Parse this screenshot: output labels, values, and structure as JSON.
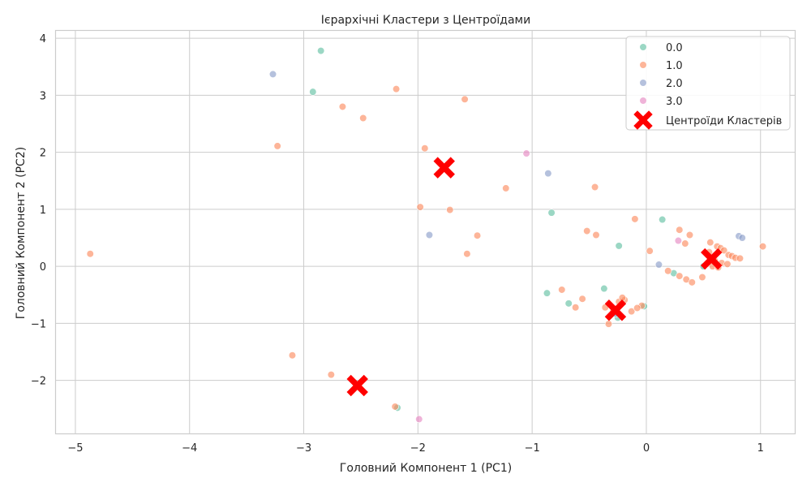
{
  "chart_data": {
    "type": "scatter",
    "title": "Ієрархічні Кластери з Центроїдами",
    "xlabel": "Головний Компонент 1 (PC1)",
    "ylabel": "Головний Компонент 2 (PC2)",
    "xlim": [
      -5.17,
      1.3
    ],
    "ylim": [
      -2.93,
      4.13
    ],
    "xticks": [
      -5,
      -4,
      -3,
      -2,
      -1,
      0,
      1
    ],
    "yticks": [
      -2,
      -1,
      0,
      1,
      2,
      3,
      4
    ],
    "xtick_labels": [
      "−5",
      "−4",
      "−3",
      "−2",
      "−1",
      "0",
      "1"
    ],
    "ytick_labels": [
      "−2",
      "−1",
      "0",
      "1",
      "2",
      "3",
      "4"
    ],
    "grid": true,
    "legend_position": "top-right",
    "series": [
      {
        "name": "0.0",
        "color": "#66c2a5",
        "points": [
          [
            -2.85,
            3.78
          ],
          [
            -2.92,
            3.06
          ],
          [
            -0.83,
            0.94
          ],
          [
            0.14,
            0.82
          ],
          [
            -0.24,
            0.36
          ],
          [
            -0.87,
            -0.47
          ],
          [
            -0.68,
            -0.65
          ],
          [
            -0.37,
            -0.39
          ],
          [
            0.24,
            -0.12
          ],
          [
            -2.18,
            -2.48
          ],
          [
            -0.25,
            -0.9
          ],
          [
            0.5,
            0.0
          ],
          [
            -0.02,
            -0.7
          ]
        ]
      },
      {
        "name": "1.0",
        "color": "#fc8d62",
        "points": [
          [
            -4.87,
            0.22
          ],
          [
            -3.23,
            2.11
          ],
          [
            -2.66,
            2.8
          ],
          [
            -2.48,
            2.6
          ],
          [
            -2.19,
            3.11
          ],
          [
            -1.59,
            2.93
          ],
          [
            -1.94,
            2.07
          ],
          [
            -1.23,
            1.37
          ],
          [
            -0.45,
            1.39
          ],
          [
            -1.98,
            1.04
          ],
          [
            -1.72,
            0.99
          ],
          [
            -1.48,
            0.54
          ],
          [
            -1.57,
            0.22
          ],
          [
            -0.52,
            0.62
          ],
          [
            -0.44,
            0.55
          ],
          [
            -0.1,
            0.83
          ],
          [
            0.03,
            0.27
          ],
          [
            0.29,
            0.64
          ],
          [
            0.34,
            0.4
          ],
          [
            0.38,
            0.55
          ],
          [
            0.19,
            -0.08
          ],
          [
            0.29,
            -0.17
          ],
          [
            0.35,
            -0.23
          ],
          [
            0.4,
            -0.28
          ],
          [
            0.49,
            -0.19
          ],
          [
            0.55,
            0.25
          ],
          [
            0.56,
            0.42
          ],
          [
            0.62,
            0.35
          ],
          [
            0.65,
            0.32
          ],
          [
            0.68,
            0.28
          ],
          [
            0.72,
            0.2
          ],
          [
            0.75,
            0.18
          ],
          [
            0.78,
            0.15
          ],
          [
            0.82,
            0.14
          ],
          [
            1.02,
            0.35
          ],
          [
            0.6,
            0.1
          ],
          [
            0.66,
            0.06
          ],
          [
            0.71,
            0.04
          ],
          [
            0.58,
            0.0
          ],
          [
            0.63,
            -0.02
          ],
          [
            -0.74,
            -0.41
          ],
          [
            -0.62,
            -0.72
          ],
          [
            -0.56,
            -0.57
          ],
          [
            -0.33,
            -1.01
          ],
          [
            -0.29,
            -0.79
          ],
          [
            -0.24,
            -0.62
          ],
          [
            -0.19,
            -0.59
          ],
          [
            -0.21,
            -0.55
          ],
          [
            -0.13,
            -0.79
          ],
          [
            -0.04,
            -0.69
          ],
          [
            -0.08,
            -0.73
          ],
          [
            -3.1,
            -1.56
          ],
          [
            -2.76,
            -1.9
          ],
          [
            -2.2,
            -2.46
          ],
          [
            -0.36,
            -0.72
          ]
        ]
      },
      {
        "name": "2.0",
        "color": "#8da0cb",
        "points": [
          [
            -3.27,
            3.37
          ],
          [
            -0.86,
            1.63
          ],
          [
            -1.9,
            0.55
          ],
          [
            0.11,
            0.03
          ],
          [
            0.81,
            0.53
          ],
          [
            0.84,
            0.5
          ],
          [
            -0.27,
            -0.83
          ]
        ]
      },
      {
        "name": "3.0",
        "color": "#e78ac3",
        "points": [
          [
            -1.05,
            1.98
          ],
          [
            0.28,
            0.45
          ],
          [
            -1.99,
            -2.68
          ]
        ]
      }
    ],
    "centroids": {
      "name": "Центроїди Кластерів",
      "color": "#ff0000",
      "points": [
        [
          -1.77,
          1.73
        ],
        [
          0.57,
          0.13
        ],
        [
          -0.27,
          -0.77
        ],
        [
          -2.53,
          -2.09
        ]
      ]
    }
  }
}
